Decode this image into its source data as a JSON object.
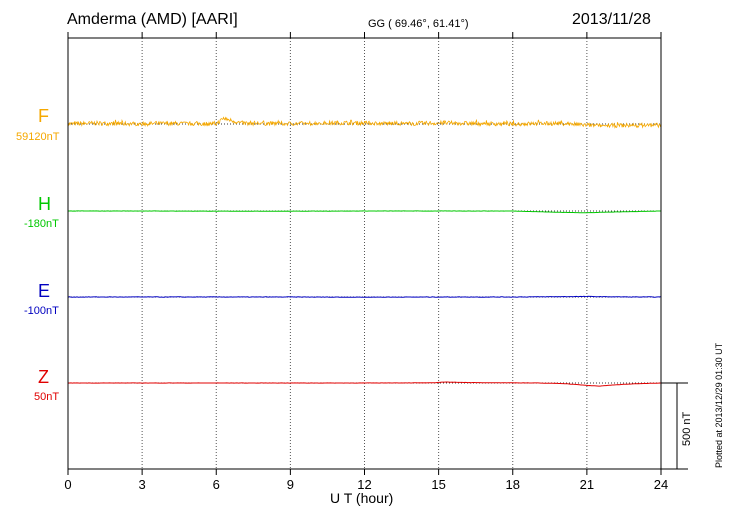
{
  "header": {
    "station": "Amderma (AMD)  [AARI]",
    "coords": "GG ( 69.46°,  61.41°)",
    "date": "2013/11/28"
  },
  "footer": {
    "plotted": "Plotted at 2013/12/29 01:30 UT"
  },
  "chart_data": {
    "type": "line",
    "title": "Amderma (AMD)  [AARI]",
    "xlabel": "U T (hour)",
    "ylabel": "",
    "xlim": [
      0,
      24
    ],
    "x_ticks": [
      "0",
      "3",
      "6",
      "9",
      "12",
      "15",
      "18",
      "21",
      "24"
    ],
    "scale_bar": {
      "label": "500 nT",
      "value_nT": 500
    },
    "series": [
      {
        "key": "F",
        "name": "F",
        "baseline_label": "59120nT",
        "baseline_nT": 59120,
        "color": "#f5a800",
        "x": [
          0,
          1,
          2,
          3,
          4,
          5,
          6,
          6.3,
          7,
          8,
          9,
          10,
          11,
          12,
          13,
          14,
          15,
          16,
          17,
          18,
          19,
          20,
          21,
          21.5,
          22,
          23,
          24
        ],
        "y": [
          0,
          8,
          4,
          2,
          6,
          4,
          2,
          60,
          10,
          6,
          4,
          8,
          12,
          10,
          6,
          4,
          10,
          8,
          4,
          0,
          4,
          6,
          -12,
          -18,
          -16,
          -14,
          -12
        ],
        "noise_nT": 22
      },
      {
        "key": "H",
        "name": "H",
        "baseline_label": "-180nT",
        "baseline_nT": -180,
        "color": "#00c800",
        "x": [
          0,
          3,
          6,
          9,
          12,
          15,
          18,
          19,
          20,
          21,
          21.5,
          22,
          23,
          24
        ],
        "y": [
          0,
          0,
          -1,
          -1,
          0,
          0,
          0,
          -4,
          -8,
          -10,
          -8,
          -6,
          -3,
          0
        ],
        "noise_nT": 0.6
      },
      {
        "key": "E",
        "name": "E",
        "baseline_label": "-100nT",
        "baseline_nT": -100,
        "color": "#0000c0",
        "x": [
          0,
          3,
          6,
          9,
          12,
          15,
          18,
          19,
          20,
          21,
          21.5,
          22,
          23,
          24
        ],
        "y": [
          0,
          0,
          0,
          0,
          -1,
          0,
          0,
          1,
          2,
          3,
          2,
          1,
          0,
          0
        ],
        "noise_nT": 1.2
      },
      {
        "key": "Z",
        "name": "Z",
        "baseline_label": "50nT",
        "baseline_nT": 50,
        "color": "#e00000",
        "x": [
          0,
          3,
          6,
          9,
          12,
          14.8,
          15.2,
          15.8,
          16.5,
          18,
          19,
          20,
          20.5,
          21,
          21.5,
          22,
          23,
          24
        ],
        "y": [
          0,
          0,
          0,
          0,
          0,
          1,
          6,
          4,
          2,
          1,
          0,
          -3,
          -8,
          -14,
          -18,
          -12,
          -4,
          0
        ],
        "noise_nT": 0.6
      }
    ]
  }
}
